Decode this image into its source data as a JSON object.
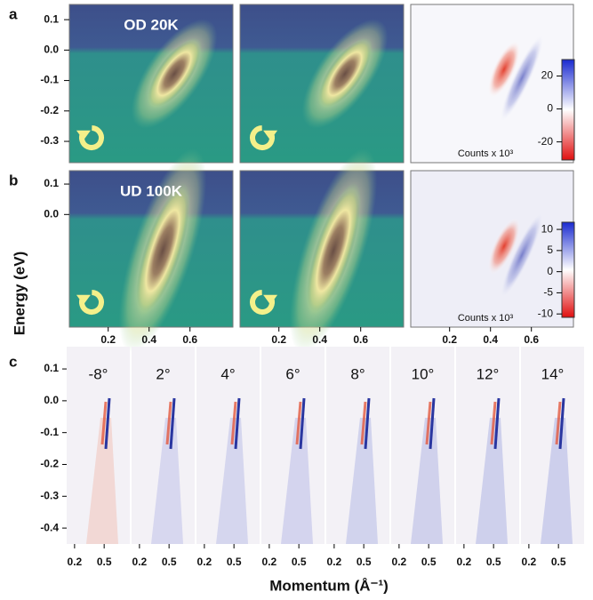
{
  "figure": {
    "y_label": "Energy (eV)",
    "x_label": "Momentum (Å⁻¹)",
    "row_a": {
      "label": "a",
      "title": "OD 20K",
      "ylim": [
        -0.37,
        0.15
      ],
      "yticks": [
        0.1,
        {
          "value": 0,
          "label": "0.0"
        },
        -0.1,
        -0.2,
        -0.3
      ],
      "colorbar": {
        "lim": [
          -31,
          30
        ],
        "ticks": [
          20,
          0,
          -20
        ],
        "label": "Counts x 10³"
      }
    },
    "row_b": {
      "label": "b",
      "title": "UD 100K",
      "ylim": [
        -0.37,
        0.144
      ],
      "yticks": [
        0.1,
        {
          "value": 0,
          "label": "0.0"
        }
      ],
      "xlim": [
        0.01,
        0.81
      ],
      "xticks": [
        0.2,
        0.4,
        0.6
      ],
      "colorbar": {
        "lim": [
          -10.8,
          11.7
        ],
        "ticks": [
          10,
          5,
          0,
          -5,
          -10
        ],
        "label": "Counts x 10³"
      }
    },
    "row_c": {
      "label": "c",
      "ylim": [
        -0.45,
        0.17
      ],
      "yticks": [
        0.1,
        {
          "value": 0,
          "label": "0.0"
        },
        -0.1,
        -0.2,
        -0.3,
        -0.4
      ],
      "xlim": [
        0.12,
        0.76
      ],
      "xticks": [
        0.2,
        0.5
      ],
      "angles": [
        "-8°",
        "2°",
        "4°",
        "6°",
        "8°",
        "10°",
        "12°",
        "14°"
      ]
    }
  }
}
